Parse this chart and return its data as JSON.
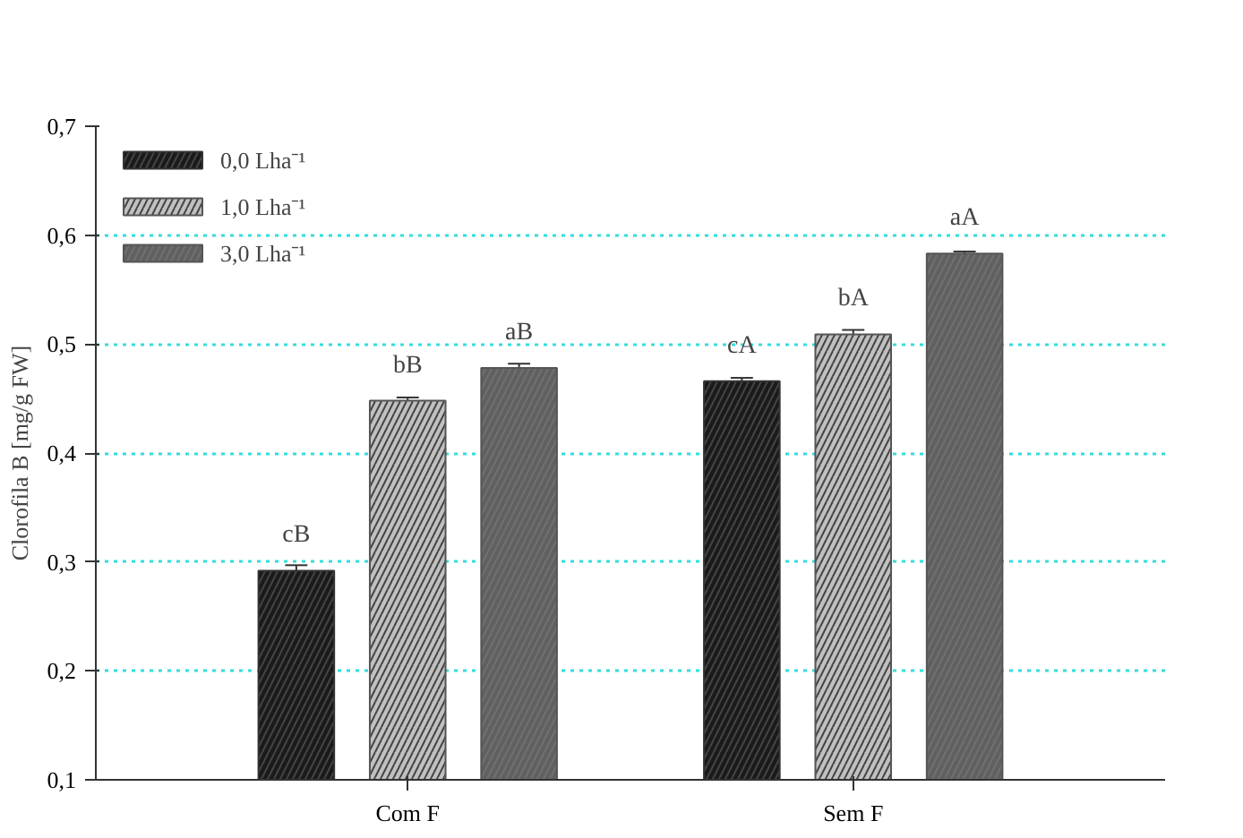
{
  "chart_data": {
    "type": "bar",
    "ylabel": "Clorofila B [mg/g FW]",
    "categories": [
      "Com F",
      "Sem F"
    ],
    "series": [
      {
        "name": "0,0 Lha⁻¹",
        "color": "#1a1a1a",
        "values": [
          0.292,
          0.466
        ],
        "errors": [
          0.005,
          0.003
        ]
      },
      {
        "name": "1,0 Lha⁻¹",
        "color": "#c0c0c0",
        "values": [
          0.448,
          0.509
        ],
        "errors": [
          0.003,
          0.004
        ]
      },
      {
        "name": "3,0 Lha⁻¹",
        "color": "#606060",
        "values": [
          0.478,
          0.583
        ],
        "errors": [
          0.004,
          0.002
        ]
      }
    ],
    "ylim": [
      0.1,
      0.7
    ],
    "yticks": [
      {
        "value": 0.1,
        "label": "0,1"
      },
      {
        "value": 0.2,
        "label": "0,2"
      },
      {
        "value": 0.3,
        "label": "0,3"
      },
      {
        "value": 0.4,
        "label": "0,4"
      },
      {
        "value": 0.5,
        "label": "0,5"
      },
      {
        "value": 0.6,
        "label": "0,6"
      },
      {
        "value": 0.7,
        "label": "0,7"
      }
    ],
    "grid": "y",
    "legend": "top left",
    "annotations": [
      "cB",
      "bB",
      "aB",
      "cA",
      "bA",
      "aA"
    ]
  }
}
